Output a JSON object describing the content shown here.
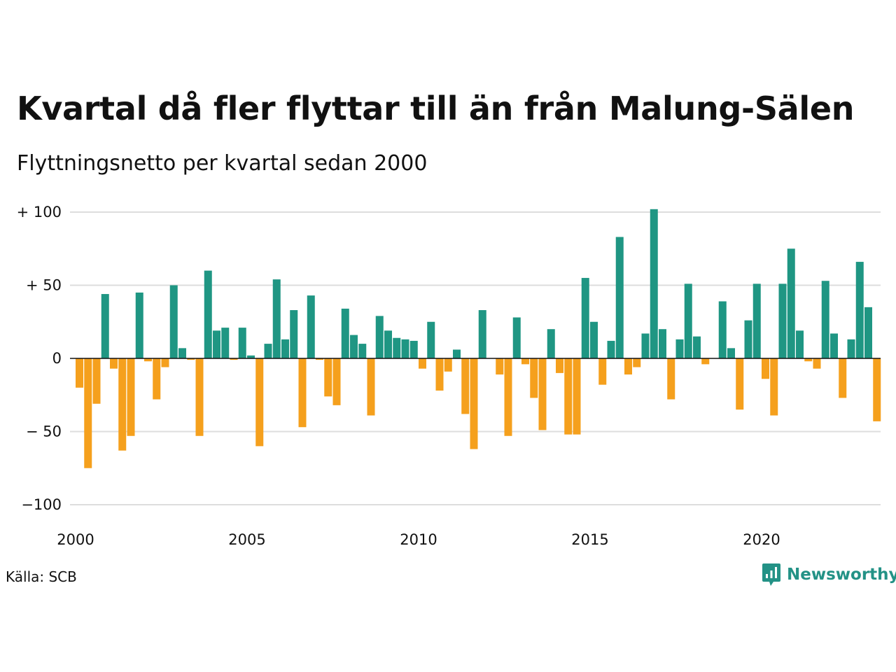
{
  "title": "Kvartal då fler flyttar till än från Malung-Sälen",
  "subtitle": "Flyttningsnetto per kvartal sedan 2000",
  "source": "Källa: SCB",
  "brand": {
    "name": "Newsworthy",
    "icon": "newsworthy-logo-icon",
    "color": "#239286"
  },
  "colors": {
    "positive": "#1f9683",
    "negative": "#f5a01d",
    "grid": "#dddddd"
  },
  "chart_data": {
    "type": "bar",
    "title": "Kvartal då fler flyttar till än från Malung-Sälen",
    "subtitle": "Flyttningsnetto per kvartal sedan 2000",
    "xlabel": "",
    "ylabel": "",
    "ylim": [
      -100,
      100
    ],
    "grid": true,
    "x_start": "2000-Q1",
    "yticks": [
      {
        "value": 100,
        "label": "+ 100"
      },
      {
        "value": 50,
        "label": "+  50"
      },
      {
        "value": 0,
        "label": "0"
      },
      {
        "value": -50,
        "label": "− 50"
      },
      {
        "value": -100,
        "label": "−100"
      }
    ],
    "xticks": [
      {
        "index": 0,
        "label": "2000"
      },
      {
        "index": 20,
        "label": "2005"
      },
      {
        "index": 40,
        "label": "2010"
      },
      {
        "index": 60,
        "label": "2015"
      },
      {
        "index": 80,
        "label": "2020"
      }
    ],
    "values": [
      -20,
      -75,
      -31,
      44,
      -7,
      -63,
      -53,
      45,
      -2,
      -28,
      -6,
      50,
      7,
      -1,
      -53,
      60,
      19,
      21,
      -1,
      21,
      2,
      -60,
      10,
      54,
      13,
      33,
      -47,
      43,
      -1,
      -26,
      -32,
      34,
      16,
      10,
      -39,
      29,
      19,
      14,
      13,
      12,
      -7,
      25,
      -22,
      -9,
      6,
      -38,
      -62,
      33,
      0,
      -11,
      -53,
      28,
      -4,
      -27,
      -49,
      20,
      -10,
      -52,
      -52,
      55,
      25,
      -18,
      12,
      83,
      -11,
      -6,
      17,
      102,
      20,
      -28,
      13,
      51,
      15,
      -4,
      0,
      39,
      7,
      -35,
      26,
      51,
      -14,
      -39,
      51,
      75,
      19,
      -2,
      -7,
      53,
      17,
      -27,
      13,
      66,
      35,
      -43
    ]
  }
}
